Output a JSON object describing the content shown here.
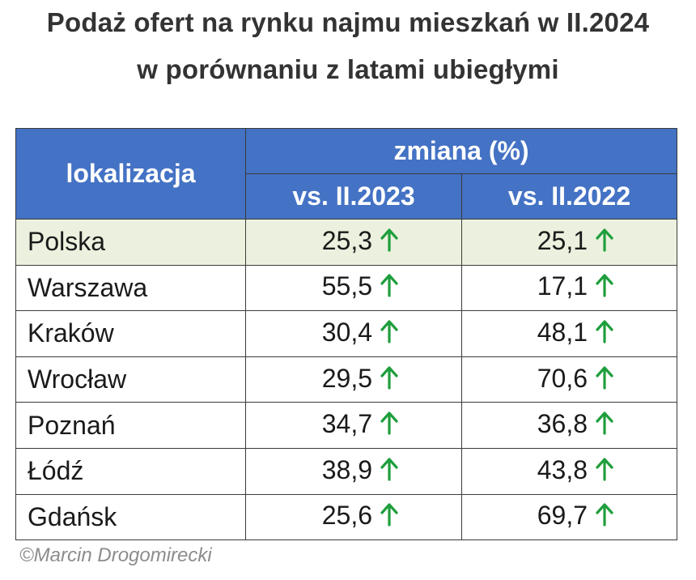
{
  "title": {
    "line1": "Podaż ofert na rynku najmu mieszkań w II.2024",
    "line2": "w porównaniu z latami ubiegłymi"
  },
  "table": {
    "col_location": "lokalizacja",
    "col_change": "zmiana (%)",
    "col_vs_2023": "vs. II.2023",
    "col_vs_2022": "vs. II.2022",
    "rows": [
      {
        "city": "Polska",
        "vs2023": "25,3",
        "vs2022": "25,1"
      },
      {
        "city": "Warszawa",
        "vs2023": "55,5",
        "vs2022": "17,1"
      },
      {
        "city": "Kraków",
        "vs2023": "30,4",
        "vs2022": "48,1"
      },
      {
        "city": "Wrocław",
        "vs2023": "29,5",
        "vs2022": "70,6"
      },
      {
        "city": "Poznań",
        "vs2023": "34,7",
        "vs2022": "36,8"
      },
      {
        "city": "Łódź",
        "vs2023": "38,9",
        "vs2022": "43,8"
      },
      {
        "city": "Gdańsk",
        "vs2023": "25,6",
        "vs2022": "69,7"
      }
    ],
    "trend_icon": "arrow-up-icon",
    "colors": {
      "header_bg": "#4472c4",
      "highlight_row_bg": "#ebf1de",
      "arrow": "#1e9e3c"
    }
  },
  "credit": "©Marcin Drogomirecki"
}
